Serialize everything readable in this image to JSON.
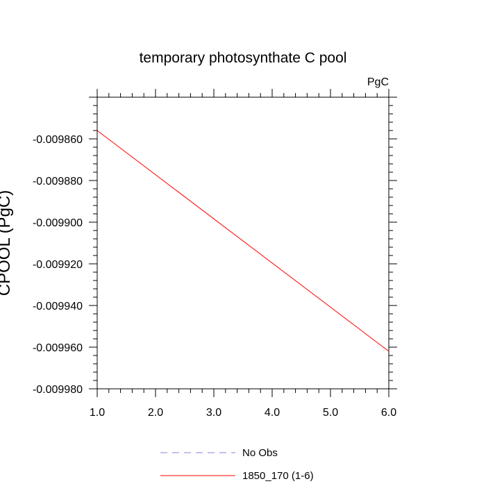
{
  "chart_data": {
    "type": "line",
    "title": "temporary photosynthate C pool",
    "units_label": "PgC",
    "ylabel": "CPOOL (PgC)",
    "xlabel": "",
    "xlim": [
      1.0,
      6.0
    ],
    "ylim": [
      -0.00998,
      -0.00984
    ],
    "x_ticks": [
      "1.0",
      "2.0",
      "3.0",
      "4.0",
      "5.0",
      "6.0"
    ],
    "y_ticks": [
      "-0.009860",
      "-0.009880",
      "-0.009900",
      "-0.009920",
      "-0.009940",
      "-0.009960",
      "-0.009980"
    ],
    "grid": false,
    "legend_position": "bottom-center",
    "series": [
      {
        "name": "No Obs",
        "color": "#8080e0",
        "dash": "dashed",
        "x": [],
        "y": []
      },
      {
        "name": "1850_170 (1-6)",
        "color": "#ff0000",
        "dash": "solid",
        "x": [
          1.0,
          6.0
        ],
        "y": [
          -0.009856,
          -0.009962
        ]
      }
    ]
  }
}
